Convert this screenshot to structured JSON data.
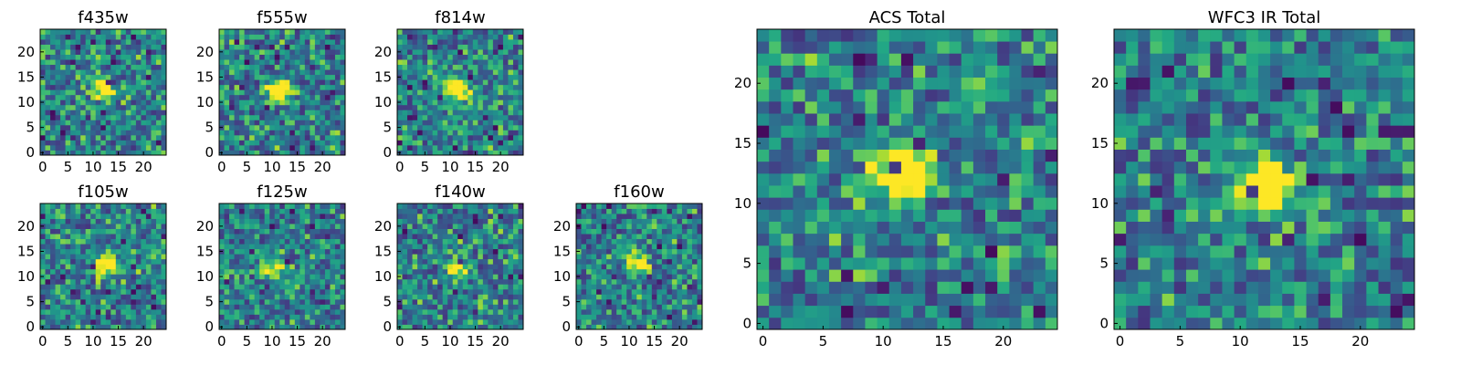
{
  "chart_data": [
    {
      "type": "heatmap",
      "title": "f435w",
      "x_ticks": [
        "0",
        "5",
        "10",
        "15",
        "20"
      ],
      "y_ticks": [
        "0",
        "5",
        "10",
        "15",
        "20"
      ],
      "xlim": [
        0,
        25
      ],
      "ylim": [
        0,
        25
      ],
      "grid": false,
      "colormap": "viridis",
      "source_center": [
        12,
        13
      ],
      "source_peak": 0.75
    },
    {
      "type": "heatmap",
      "title": "f555w",
      "x_ticks": [
        "0",
        "5",
        "10",
        "15",
        "20"
      ],
      "y_ticks": [
        "0",
        "5",
        "10",
        "15",
        "20"
      ],
      "xlim": [
        0,
        25
      ],
      "ylim": [
        0,
        25
      ],
      "grid": false,
      "colormap": "viridis",
      "source_center": [
        11.5,
        12.5
      ],
      "source_peak": 1.0
    },
    {
      "type": "heatmap",
      "title": "f814w",
      "x_ticks": [
        "0",
        "5",
        "10",
        "15",
        "20"
      ],
      "y_ticks": [
        "0",
        "5",
        "10",
        "15",
        "20"
      ],
      "xlim": [
        0,
        25
      ],
      "ylim": [
        0,
        25
      ],
      "grid": false,
      "colormap": "viridis",
      "source_center": [
        11.5,
        12.5
      ],
      "source_peak": 1.0
    },
    {
      "type": "heatmap",
      "title": "f105w",
      "x_ticks": [
        "0",
        "5",
        "10",
        "15",
        "20"
      ],
      "y_ticks": [
        "0",
        "5",
        "10",
        "15",
        "20"
      ],
      "xlim": [
        0,
        25
      ],
      "ylim": [
        0,
        25
      ],
      "grid": false,
      "colormap": "viridis",
      "source_center": [
        12.5,
        12.5
      ],
      "source_peak": 0.9
    },
    {
      "type": "heatmap",
      "title": "f125w",
      "x_ticks": [
        "0",
        "5",
        "10",
        "15",
        "20"
      ],
      "y_ticks": [
        "0",
        "5",
        "10",
        "15",
        "20"
      ],
      "xlim": [
        0,
        25
      ],
      "ylim": [
        0,
        25
      ],
      "grid": false,
      "colormap": "viridis",
      "source_center": [
        10.5,
        11.5
      ],
      "source_peak": 0.6
    },
    {
      "type": "heatmap",
      "title": "f140w",
      "x_ticks": [
        "0",
        "5",
        "10",
        "15",
        "20"
      ],
      "y_ticks": [
        "0",
        "5",
        "10",
        "15",
        "20"
      ],
      "xlim": [
        0,
        25
      ],
      "ylim": [
        0,
        25
      ],
      "grid": false,
      "colormap": "viridis",
      "source_center": [
        11.5,
        11.5
      ],
      "source_peak": 0.55
    },
    {
      "type": "heatmap",
      "title": "f160w",
      "x_ticks": [
        "0",
        "5",
        "10",
        "15",
        "20"
      ],
      "y_ticks": [
        "0",
        "5",
        "10",
        "15",
        "20"
      ],
      "xlim": [
        0,
        25
      ],
      "ylim": [
        0,
        25
      ],
      "grid": false,
      "colormap": "viridis",
      "source_center": [
        11.5,
        12.5
      ],
      "source_peak": 0.7
    },
    {
      "type": "heatmap",
      "title": "ACS Total",
      "x_ticks": [
        "0",
        "5",
        "10",
        "15",
        "20"
      ],
      "y_ticks": [
        "0",
        "5",
        "10",
        "15",
        "20"
      ],
      "xlim": [
        0,
        25
      ],
      "ylim": [
        0,
        25
      ],
      "grid": false,
      "colormap": "viridis",
      "source_center": [
        11.5,
        12.5
      ],
      "source_peak": 1.0
    },
    {
      "type": "heatmap",
      "title": "WFC3 IR Total",
      "x_ticks": [
        "0",
        "5",
        "10",
        "15",
        "20"
      ],
      "y_ticks": [
        "0",
        "5",
        "10",
        "15",
        "20"
      ],
      "xlim": [
        0,
        25
      ],
      "ylim": [
        0,
        25
      ],
      "grid": false,
      "colormap": "viridis",
      "source_center": [
        12,
        11.5
      ],
      "source_peak": 1.0
    }
  ]
}
